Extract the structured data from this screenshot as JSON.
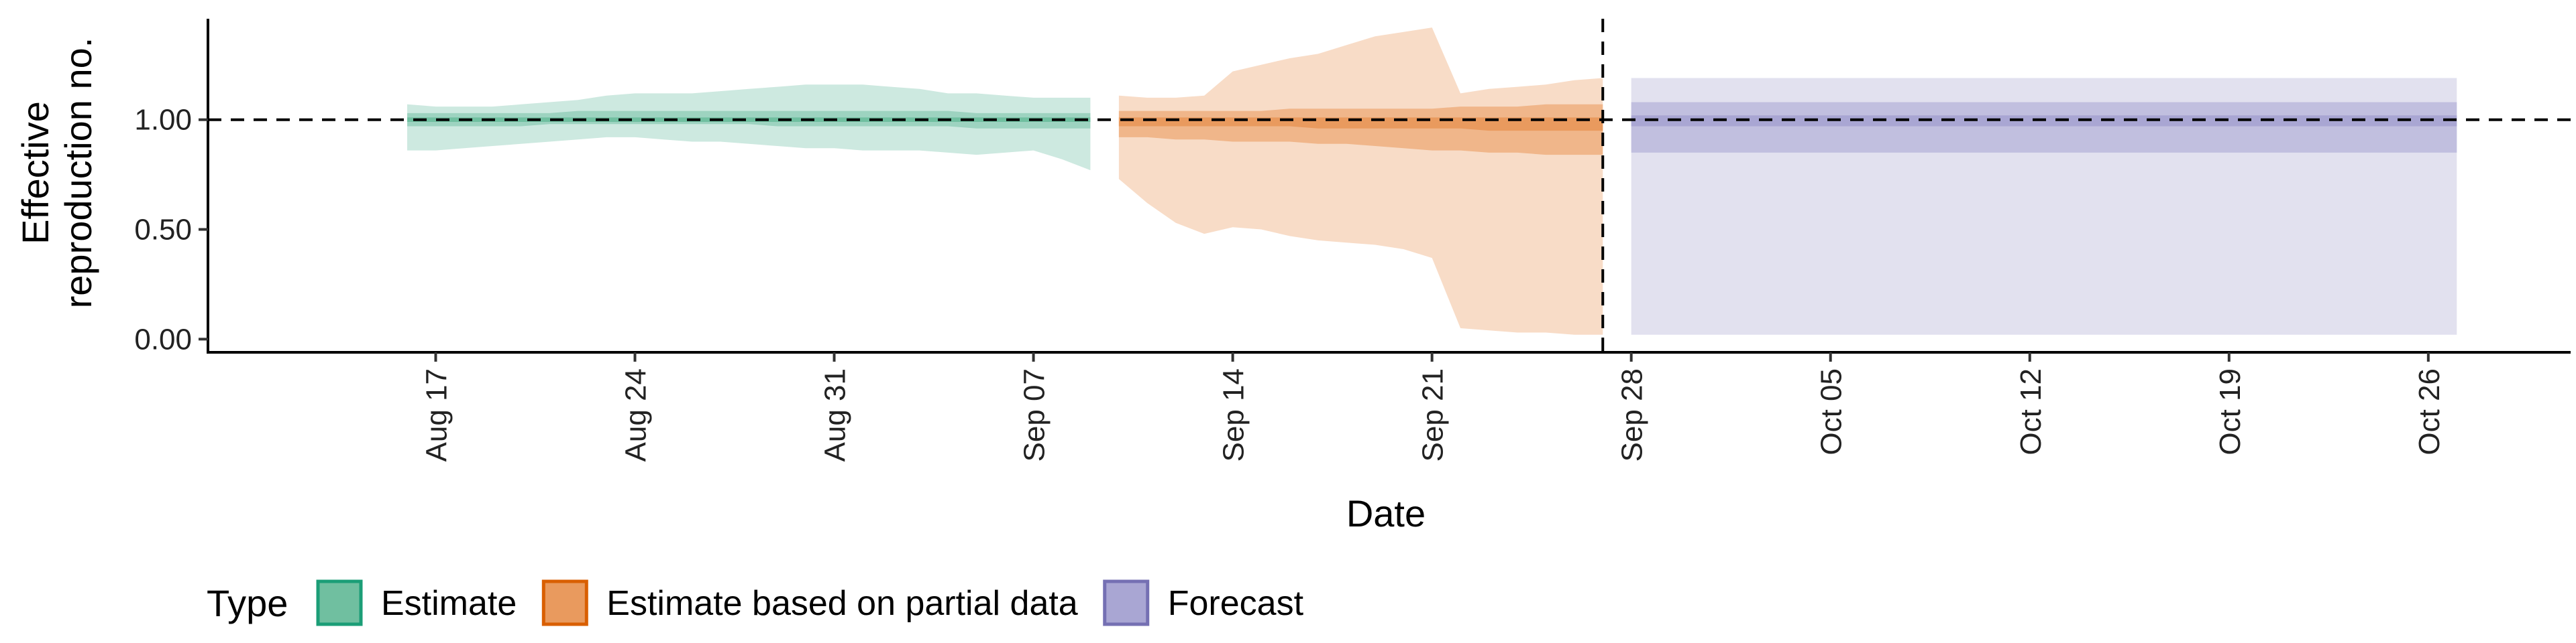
{
  "chart_data": {
    "type": "area",
    "title": "",
    "xlabel": "Date",
    "ylabel_lines": [
      "Effective",
      "reproduction no."
    ],
    "xlim": [
      "2021-08-09",
      "2021-10-31"
    ],
    "ylim": [
      -0.06,
      1.46
    ],
    "yticks": [
      {
        "value": 0.0,
        "label": "0.00"
      },
      {
        "value": 0.5,
        "label": "0.50"
      },
      {
        "value": 1.0,
        "label": "1.00"
      }
    ],
    "xticks": [
      {
        "date": "2021-08-17",
        "label": "Aug 17"
      },
      {
        "date": "2021-08-24",
        "label": "Aug 24"
      },
      {
        "date": "2021-08-31",
        "label": "Aug 31"
      },
      {
        "date": "2021-09-07",
        "label": "Sep 07"
      },
      {
        "date": "2021-09-14",
        "label": "Sep 14"
      },
      {
        "date": "2021-09-21",
        "label": "Sep 21"
      },
      {
        "date": "2021-09-28",
        "label": "Sep 28"
      },
      {
        "date": "2021-10-05",
        "label": "Oct 05"
      },
      {
        "date": "2021-10-12",
        "label": "Oct 12"
      },
      {
        "date": "2021-10-19",
        "label": "Oct 19"
      },
      {
        "date": "2021-10-26",
        "label": "Oct 26"
      }
    ],
    "reference_hline": 1.0,
    "reference_vline": "2021-09-27",
    "grid": false,
    "legend": {
      "title": "Type",
      "position": "bottom-left"
    },
    "series": [
      {
        "name": "Estimate",
        "color": "#1b9e77",
        "fill_light": "#cde9e0",
        "fill_mid": "#9dd3c0",
        "fill_dark": "#70bfa0",
        "border": "#1b9e77",
        "dates": [
          "2021-08-16",
          "2021-08-17",
          "2021-08-18",
          "2021-08-19",
          "2021-08-20",
          "2021-08-21",
          "2021-08-22",
          "2021-08-23",
          "2021-08-24",
          "2021-08-25",
          "2021-08-26",
          "2021-08-27",
          "2021-08-28",
          "2021-08-29",
          "2021-08-30",
          "2021-08-31",
          "2021-09-01",
          "2021-09-02",
          "2021-09-03",
          "2021-09-04",
          "2021-09-05",
          "2021-09-06",
          "2021-09-07",
          "2021-09-08",
          "2021-09-09"
        ],
        "lower90": [
          0.86,
          0.86,
          0.87,
          0.88,
          0.89,
          0.9,
          0.91,
          0.92,
          0.92,
          0.91,
          0.9,
          0.9,
          0.89,
          0.88,
          0.87,
          0.87,
          0.86,
          0.86,
          0.86,
          0.85,
          0.84,
          0.85,
          0.86,
          0.82,
          0.77
        ],
        "upper90": [
          1.07,
          1.06,
          1.06,
          1.06,
          1.07,
          1.08,
          1.09,
          1.11,
          1.12,
          1.12,
          1.12,
          1.13,
          1.14,
          1.15,
          1.16,
          1.16,
          1.16,
          1.15,
          1.14,
          1.12,
          1.12,
          1.11,
          1.1,
          1.1,
          1.1
        ],
        "lower50": [
          0.97,
          0.97,
          0.97,
          0.97,
          0.97,
          0.98,
          0.98,
          0.98,
          0.98,
          0.98,
          0.98,
          0.98,
          0.98,
          0.97,
          0.97,
          0.97,
          0.97,
          0.97,
          0.97,
          0.97,
          0.96,
          0.96,
          0.96,
          0.96,
          0.96
        ],
        "upper50": [
          1.03,
          1.03,
          1.03,
          1.03,
          1.03,
          1.03,
          1.04,
          1.04,
          1.04,
          1.04,
          1.04,
          1.04,
          1.04,
          1.04,
          1.04,
          1.04,
          1.04,
          1.04,
          1.04,
          1.04,
          1.03,
          1.03,
          1.03,
          1.03,
          1.03
        ],
        "lower20": [
          0.99,
          0.99,
          0.99,
          0.99,
          0.99,
          0.99,
          0.99,
          0.99,
          0.99,
          0.99,
          0.99,
          0.99,
          0.99,
          0.99,
          0.99,
          0.99,
          0.99,
          0.99,
          0.99,
          0.99,
          0.99,
          0.99,
          0.99,
          0.99,
          0.99
        ],
        "upper20": [
          1.01,
          1.01,
          1.01,
          1.01,
          1.01,
          1.01,
          1.01,
          1.01,
          1.01,
          1.01,
          1.01,
          1.01,
          1.01,
          1.01,
          1.01,
          1.01,
          1.01,
          1.01,
          1.01,
          1.01,
          1.01,
          1.01,
          1.01,
          1.01,
          1.01
        ]
      },
      {
        "name": "Estimate based on partial data",
        "color": "#d95f02",
        "fill_light": "#f8dcc7",
        "fill_mid": "#f0b68a",
        "fill_dark": "#e99a5e",
        "border": "#d95f02",
        "dates": [
          "2021-09-10",
          "2021-09-11",
          "2021-09-12",
          "2021-09-13",
          "2021-09-14",
          "2021-09-15",
          "2021-09-16",
          "2021-09-17",
          "2021-09-18",
          "2021-09-19",
          "2021-09-20",
          "2021-09-21",
          "2021-09-22",
          "2021-09-23",
          "2021-09-24",
          "2021-09-25",
          "2021-09-26",
          "2021-09-27"
        ],
        "lower90": [
          0.73,
          0.62,
          0.53,
          0.48,
          0.51,
          0.5,
          0.47,
          0.45,
          0.44,
          0.43,
          0.41,
          0.37,
          0.05,
          0.04,
          0.03,
          0.03,
          0.02,
          0.02
        ],
        "upper90": [
          1.11,
          1.1,
          1.1,
          1.11,
          1.22,
          1.25,
          1.28,
          1.3,
          1.34,
          1.38,
          1.4,
          1.42,
          1.12,
          1.14,
          1.15,
          1.16,
          1.18,
          1.19
        ],
        "lower50": [
          0.92,
          0.92,
          0.91,
          0.91,
          0.9,
          0.9,
          0.9,
          0.89,
          0.89,
          0.88,
          0.87,
          0.86,
          0.86,
          0.85,
          0.85,
          0.84,
          0.84,
          0.84
        ],
        "upper50": [
          1.04,
          1.04,
          1.04,
          1.04,
          1.04,
          1.04,
          1.05,
          1.05,
          1.05,
          1.05,
          1.05,
          1.05,
          1.06,
          1.06,
          1.06,
          1.07,
          1.07,
          1.07
        ],
        "lower20": [
          0.97,
          0.97,
          0.97,
          0.97,
          0.97,
          0.97,
          0.97,
          0.96,
          0.96,
          0.96,
          0.96,
          0.96,
          0.96,
          0.95,
          0.95,
          0.95,
          0.95,
          0.95
        ],
        "upper20": [
          1.01,
          1.01,
          1.01,
          1.01,
          1.01,
          1.01,
          1.01,
          1.01,
          1.01,
          1.01,
          1.01,
          1.01,
          1.01,
          1.01,
          1.01,
          1.01,
          1.01,
          1.01
        ]
      },
      {
        "name": "Forecast",
        "color": "#7570b3",
        "fill_light": "#e2e1ef",
        "fill_mid": "#c1bfdf",
        "fill_dark": "#a9a6d3",
        "border": "#7570b3",
        "dates": [
          "2021-09-28",
          "2021-10-27"
        ],
        "lower90": [
          0.02,
          0.02
        ],
        "upper90": [
          1.19,
          1.19
        ],
        "lower50": [
          0.85,
          0.85
        ],
        "upper50": [
          1.08,
          1.08
        ],
        "lower20": [
          0.97,
          0.97
        ],
        "upper20": [
          1.02,
          1.02
        ]
      }
    ]
  }
}
